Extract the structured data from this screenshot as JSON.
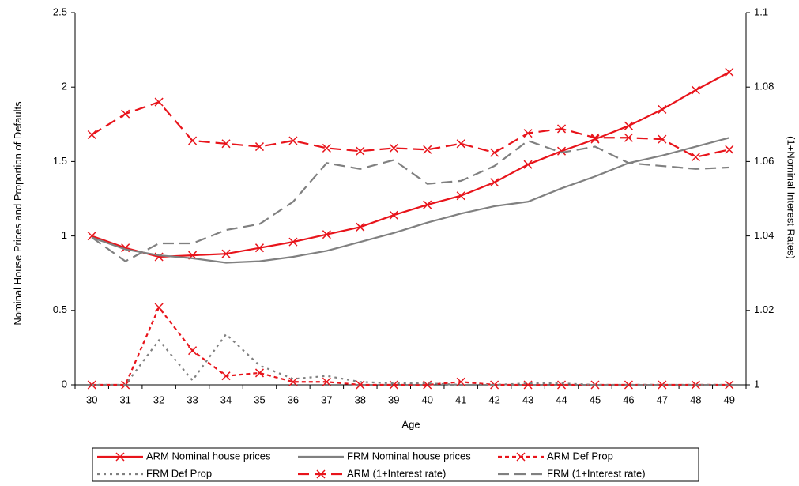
{
  "chart_data": {
    "type": "line",
    "x_label": "Age",
    "y_label": "Nominal House Prices and Proportion of Defaults",
    "y2_label": "(1+Nominal Interest Rates)",
    "categories": [
      "30",
      "31",
      "32",
      "33",
      "34",
      "35",
      "36",
      "37",
      "38",
      "39",
      "40",
      "41",
      "42",
      "43",
      "44",
      "45",
      "46",
      "47",
      "48",
      "49"
    ],
    "ylim": [
      0,
      2.5
    ],
    "yticks": [
      0,
      0.5,
      1,
      1.5,
      2,
      2.5
    ],
    "y2lim": [
      1,
      1.1
    ],
    "y2ticks": [
      1,
      1.02,
      1.04,
      1.06,
      1.08,
      1.1
    ],
    "legend": "bottom",
    "series": [
      {
        "name": "ARM Nominal house prices",
        "color": "#e8141b",
        "dash": "solid",
        "marker": "x",
        "values": [
          1.0,
          0.92,
          0.86,
          0.87,
          0.88,
          0.92,
          0.96,
          1.01,
          1.06,
          1.14,
          1.21,
          1.27,
          1.36,
          1.48,
          1.57,
          1.65,
          1.74,
          1.85,
          1.98,
          2.1
        ]
      },
      {
        "name": "FRM Nominal house prices",
        "color": "#808080",
        "dash": "solid",
        "marker": "none",
        "values": [
          0.99,
          0.91,
          0.87,
          0.85,
          0.82,
          0.83,
          0.86,
          0.9,
          0.96,
          1.02,
          1.09,
          1.15,
          1.2,
          1.23,
          1.32,
          1.4,
          1.49,
          1.54,
          1.6,
          1.66
        ]
      },
      {
        "name": "ARM Def Prop",
        "color": "#e8141b",
        "dash": "dashed",
        "marker": "x",
        "values": [
          0,
          0,
          0.52,
          0.23,
          0.06,
          0.08,
          0.02,
          0.02,
          0,
          0,
          0,
          0.02,
          0,
          0,
          0,
          0,
          0,
          0,
          0,
          0
        ]
      },
      {
        "name": "FRM Def Prop",
        "color": "#808080",
        "dash": "dotted",
        "marker": "none",
        "values": [
          0,
          0,
          0.3,
          0.03,
          0.34,
          0.13,
          0.04,
          0.06,
          0.02,
          0.01,
          0.01,
          0,
          0,
          0.01,
          0.01,
          0,
          0,
          0,
          0,
          0
        ]
      },
      {
        "name": "ARM (1+Interest rate)",
        "color": "#e8141b",
        "dash": "longdash",
        "marker": "x",
        "axis": "y2",
        "values": [
          1.0672,
          1.0728,
          1.076,
          1.0656,
          1.0648,
          1.064,
          1.0656,
          1.0636,
          1.0628,
          1.0636,
          1.0632,
          1.0648,
          1.0624,
          1.0676,
          1.0688,
          1.0664,
          1.0664,
          1.066,
          1.0612,
          1.0632
        ]
      },
      {
        "name": "FRM (1+Interest rate)",
        "color": "#808080",
        "dash": "longdash",
        "marker": "none",
        "axis": "y2",
        "values": [
          1.0396,
          1.0332,
          1.038,
          1.038,
          1.0416,
          1.0432,
          1.0492,
          1.0596,
          1.058,
          1.0604,
          1.054,
          1.0548,
          1.0588,
          1.0656,
          1.0624,
          1.064,
          1.0596,
          1.0588,
          1.058,
          1.0584
        ]
      }
    ]
  }
}
